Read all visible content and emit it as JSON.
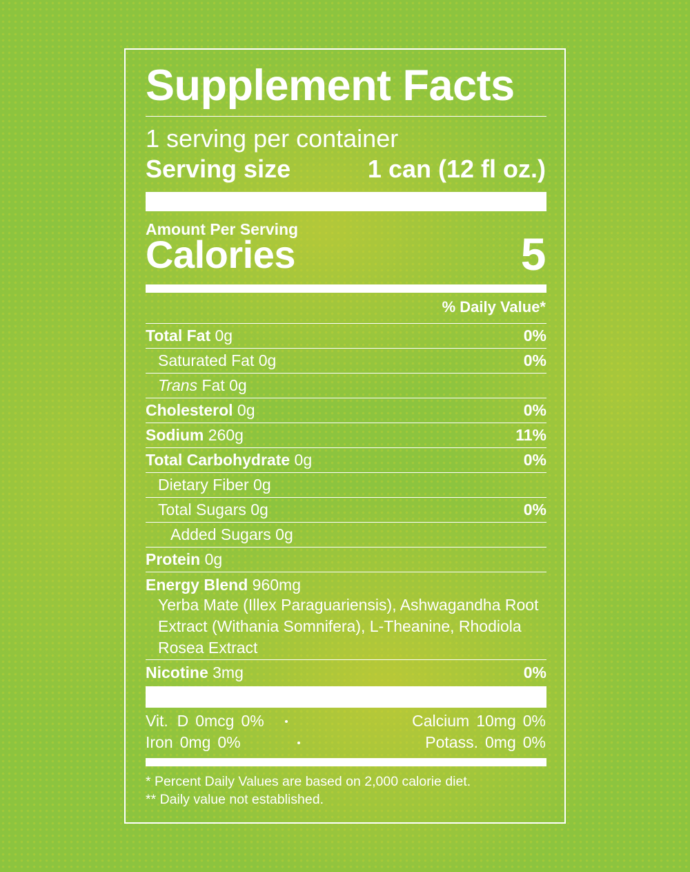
{
  "title": "Supplement Facts",
  "servings_per_container": "1 serving per container",
  "serving_size": {
    "label": "Serving size",
    "value": "1 can (12 fl oz.)"
  },
  "amount_per_serving": "Amount Per Serving",
  "calories": {
    "label": "Calories",
    "value": "5"
  },
  "daily_value_header": "% Daily Value*",
  "nutrients": [
    {
      "name": "Total Fat",
      "amount": "0g",
      "dv": "0%"
    },
    {
      "name": "Saturated Fat",
      "amount": "0g",
      "dv": "0%"
    },
    {
      "name_italic": "Trans",
      "name": "Fat",
      "amount": "0g"
    },
    {
      "name": "Cholesterol",
      "amount": "0g",
      "dv": "0%"
    },
    {
      "name": "Sodium",
      "amount": "260g",
      "dv": "11%"
    },
    {
      "name": "Total Carbohydrate",
      "amount": "0g",
      "dv": "0%"
    },
    {
      "name": "Dietary Fiber",
      "amount": "0g"
    },
    {
      "name": "Total Sugars",
      "amount": "0g",
      "dv": "0%"
    },
    {
      "name": "Added Sugars",
      "amount": "0g"
    },
    {
      "name": "Protein",
      "amount": "0g"
    },
    {
      "name": "Energy Blend",
      "amount": "960mg",
      "description": "Yerba Mate (Illex Paraguariensis), Ashwagandha Root Extract (Withania Somnifera), L-Theanine, Rhodiola Rosea Extract"
    },
    {
      "name": "Nicotine",
      "amount": "3mg",
      "dv": "0%"
    }
  ],
  "minerals": [
    {
      "name": "Vit.  D",
      "amount": "0mcg",
      "dv": "0%"
    },
    {
      "name": "Calcium",
      "amount": "10mg",
      "dv": "0%"
    },
    {
      "name": "Iron",
      "amount": "0mg",
      "dv": "0%"
    },
    {
      "name": "Potass.",
      "amount": "0mg",
      "dv": "0%"
    }
  ],
  "footnotes": [
    "* Percent Daily Values are based on 2,000 calorie diet.",
    "** Daily value not established."
  ]
}
